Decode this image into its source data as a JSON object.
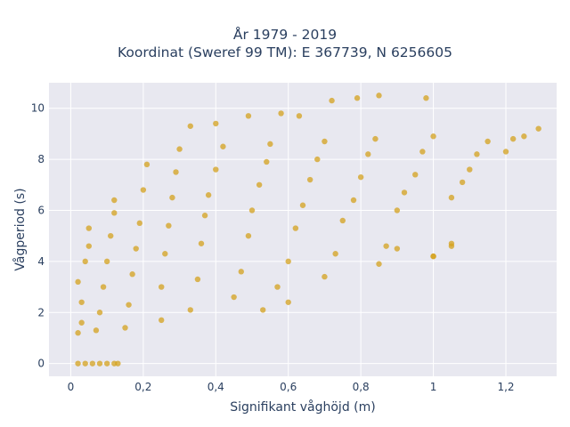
{
  "chart_data": {
    "type": "scatter",
    "title": [
      "År 1979 - 2019",
      "Koordinat (Sweref 99 TM): E 367739, N 6256605"
    ],
    "xlabel": "Signifikant våghöjd (m)",
    "ylabel": "Vågperiod (s)",
    "xlim": [
      -0.06,
      1.34
    ],
    "ylim": [
      -0.5,
      11.0
    ],
    "x_ticks": [
      0,
      0.2,
      0.4,
      0.6,
      0.8,
      1,
      1.2
    ],
    "x_tick_labels": [
      "0",
      "0,2",
      "0,4",
      "0,6",
      "0,8",
      "1",
      "1,2"
    ],
    "y_ticks": [
      0,
      2,
      4,
      6,
      8,
      10
    ],
    "y_tick_labels": [
      "0",
      "2",
      "4",
      "6",
      "8",
      "10"
    ],
    "marker_color": "#d4a11e",
    "plot_background": "#e8e8f0",
    "grid": true,
    "points": [
      [
        0.02,
        0.0
      ],
      [
        0.04,
        0.0
      ],
      [
        0.06,
        0.0
      ],
      [
        0.08,
        0.0
      ],
      [
        0.1,
        0.0
      ],
      [
        0.12,
        0.0
      ],
      [
        0.13,
        0.0
      ],
      [
        0.02,
        1.2
      ],
      [
        0.03,
        1.6
      ],
      [
        0.03,
        2.4
      ],
      [
        0.02,
        3.2
      ],
      [
        0.04,
        4.0
      ],
      [
        0.05,
        4.6
      ],
      [
        0.05,
        5.3
      ],
      [
        0.07,
        1.3
      ],
      [
        0.08,
        2.0
      ],
      [
        0.09,
        3.0
      ],
      [
        0.1,
        4.0
      ],
      [
        0.11,
        5.0
      ],
      [
        0.12,
        5.9
      ],
      [
        0.12,
        6.4
      ],
      [
        0.15,
        1.4
      ],
      [
        0.16,
        2.3
      ],
      [
        0.17,
        3.5
      ],
      [
        0.18,
        4.5
      ],
      [
        0.19,
        5.5
      ],
      [
        0.2,
        6.8
      ],
      [
        0.21,
        7.8
      ],
      [
        0.25,
        1.7
      ],
      [
        0.25,
        3.0
      ],
      [
        0.26,
        4.3
      ],
      [
        0.27,
        5.4
      ],
      [
        0.28,
        6.5
      ],
      [
        0.29,
        7.5
      ],
      [
        0.3,
        8.4
      ],
      [
        0.33,
        2.1
      ],
      [
        0.35,
        3.3
      ],
      [
        0.36,
        4.7
      ],
      [
        0.37,
        5.8
      ],
      [
        0.38,
        6.6
      ],
      [
        0.4,
        7.6
      ],
      [
        0.42,
        8.5
      ],
      [
        0.45,
        2.6
      ],
      [
        0.47,
        3.6
      ],
      [
        0.49,
        5.0
      ],
      [
        0.5,
        6.0
      ],
      [
        0.52,
        7.0
      ],
      [
        0.54,
        7.9
      ],
      [
        0.55,
        8.6
      ],
      [
        0.57,
        3.0
      ],
      [
        0.6,
        4.0
      ],
      [
        0.62,
        5.3
      ],
      [
        0.64,
        6.2
      ],
      [
        0.66,
        7.2
      ],
      [
        0.68,
        8.0
      ],
      [
        0.7,
        8.7
      ],
      [
        0.7,
        3.4
      ],
      [
        0.73,
        4.3
      ],
      [
        0.75,
        5.6
      ],
      [
        0.78,
        6.4
      ],
      [
        0.8,
        7.3
      ],
      [
        0.82,
        8.2
      ],
      [
        0.84,
        8.8
      ],
      [
        0.85,
        3.9
      ],
      [
        0.87,
        4.6
      ],
      [
        0.9,
        6.0
      ],
      [
        0.92,
        6.7
      ],
      [
        0.95,
        7.4
      ],
      [
        0.97,
        8.3
      ],
      [
        1.0,
        8.9
      ],
      [
        1.0,
        4.2
      ],
      [
        1.05,
        4.6
      ],
      [
        1.05,
        6.5
      ],
      [
        1.08,
        7.1
      ],
      [
        1.1,
        7.6
      ],
      [
        1.12,
        8.2
      ],
      [
        1.15,
        8.7
      ],
      [
        1.2,
        8.3
      ],
      [
        1.22,
        8.8
      ],
      [
        1.25,
        8.9
      ],
      [
        1.29,
        9.2
      ],
      [
        0.33,
        9.3
      ],
      [
        0.4,
        9.4
      ],
      [
        0.49,
        9.7
      ],
      [
        0.58,
        9.8
      ],
      [
        0.63,
        9.7
      ],
      [
        0.72,
        10.3
      ],
      [
        0.79,
        10.4
      ],
      [
        0.85,
        10.5
      ],
      [
        0.98,
        10.4
      ],
      [
        0.53,
        2.1
      ],
      [
        0.6,
        2.4
      ],
      [
        0.9,
        4.5
      ],
      [
        1.0,
        4.2
      ],
      [
        1.05,
        4.7
      ]
    ]
  }
}
